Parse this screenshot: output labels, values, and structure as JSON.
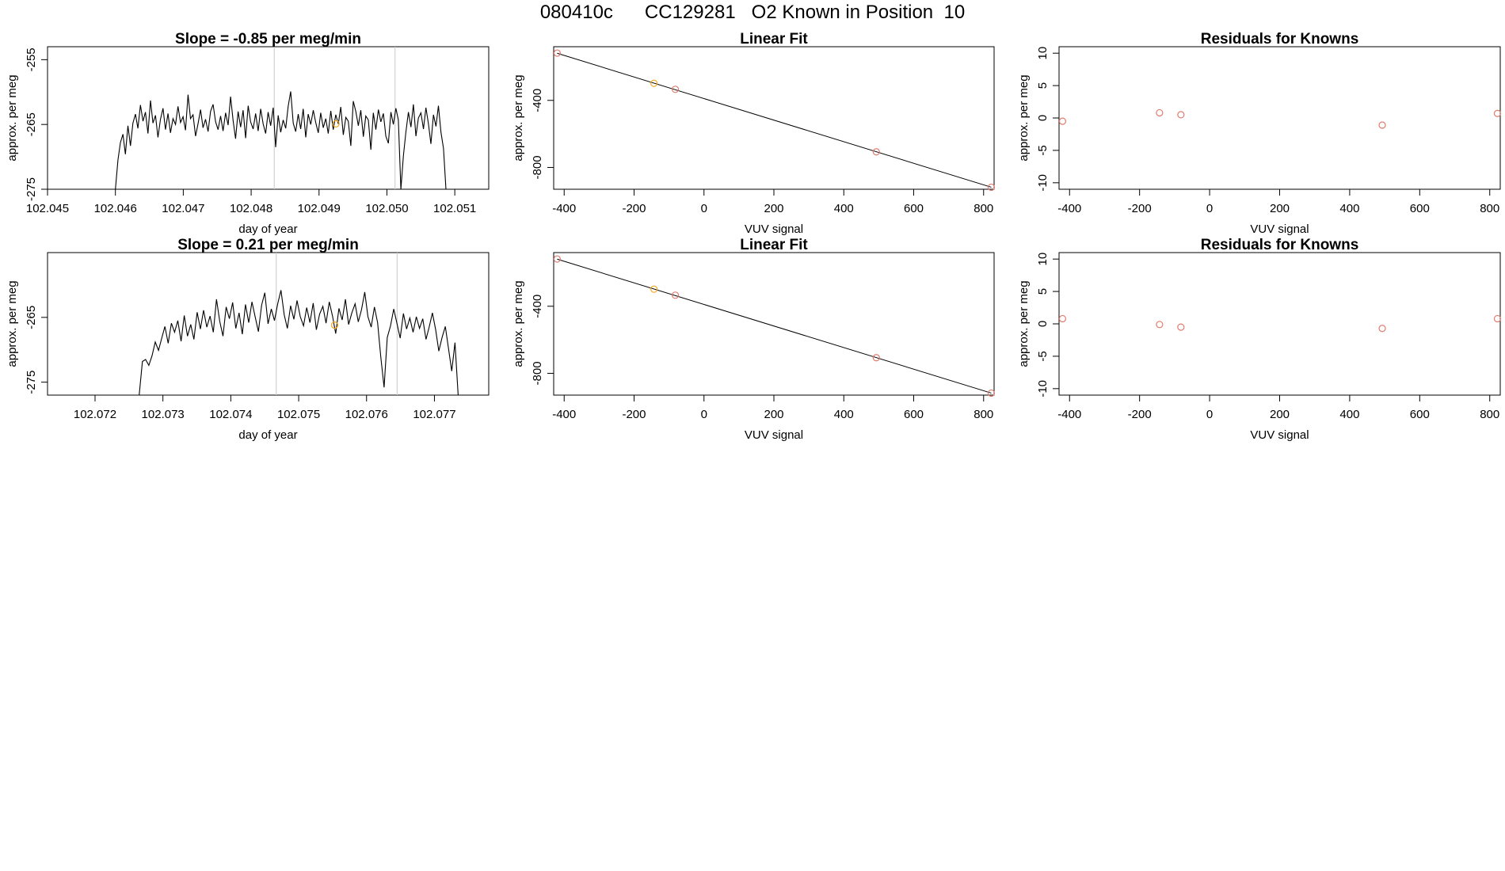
{
  "page_title": "080410c      CC129281   O2 Known in Position  10",
  "colors": {
    "known_point": "#e07b6e",
    "highlight_point": "#f5a623",
    "line": "#000000",
    "vline": "#c8c8c8"
  },
  "chart_data": [
    {
      "id": "ts1",
      "type": "line",
      "title": "Slope =  -0.85  per meg/min",
      "xlabel": "day of year",
      "ylabel": "approx. per meg",
      "xlim": [
        102.045,
        102.0515
      ],
      "ylim": [
        -275,
        -253
      ],
      "xticks": [
        "102.045",
        "102.046",
        "102.047",
        "102.048",
        "102.049",
        "102.050",
        "102.051"
      ],
      "yticks": [
        "-275",
        "-265",
        "-255"
      ],
      "vlines": [
        102.04834,
        102.05012
      ],
      "highlight_point": {
        "x": 102.04925,
        "y": -264.9
      },
      "series": [
        {
          "x_start": 102.046,
          "x_end": 102.05087,
          "n": 260,
          "mean": -265.5,
          "dip_x": 102.0502,
          "values": [
            -275,
            -270.5,
            -267.8,
            -266.5,
            -269.6,
            -265.2,
            -268.3,
            -264.8,
            -263.4,
            -265.6,
            -262.0,
            -264.5,
            -263.1,
            -266.4,
            -261.3,
            -264.8,
            -263.6,
            -267.0,
            -264.2,
            -262.5,
            -265.8,
            -263.3,
            -266.3,
            -264.1,
            -265.0,
            -262.2,
            -264.7,
            -263.8,
            -265.9,
            -260.4,
            -264.1,
            -263.5,
            -266.8,
            -264.9,
            -262.7,
            -265.5,
            -264.2,
            -266.1,
            -263.0,
            -261.9,
            -264.6,
            -265.8,
            -263.7,
            -266.0,
            -263.2,
            -265.1,
            -260.7,
            -264.4,
            -267.2,
            -263.0,
            -265.4,
            -262.8,
            -267.1,
            -262.1,
            -264.6,
            -265.7,
            -263.3,
            -266.0,
            -262.6,
            -264.9,
            -266.4,
            -263.1,
            -265.2,
            -262.4,
            -268.5,
            -263.6,
            -266.2,
            -264.3,
            -265.6,
            -262.2,
            -259.9,
            -264.8,
            -266.1,
            -263.4,
            -265.7,
            -262.6,
            -267.0,
            -263.4,
            -265.0,
            -262.8,
            -264.7,
            -266.3,
            -263.2,
            -265.5,
            -264.1,
            -266.4,
            -262.9,
            -265.8,
            -263.5,
            -264.9,
            -262.3,
            -266.6,
            -263.9,
            -264.5,
            -268.3,
            -261.4,
            -263.0,
            -265.2,
            -262.8,
            -266.9,
            -263.7,
            -264.3,
            -268.9,
            -263.2,
            -265.8,
            -262.7,
            -264.6,
            -263.3,
            -266.8,
            -267.9,
            -263.1,
            -265.0,
            -262.5,
            -264.3,
            -275,
            -269.8,
            -266.2,
            -263.1,
            -265.4,
            -261.9,
            -266.8,
            -264.0,
            -263.2,
            -265.7,
            -262.4,
            -264.9,
            -268.0,
            -263.5,
            -265.3,
            -262.1,
            -266.2,
            -268.7,
            -275
          ]
        }
      ]
    },
    {
      "id": "fit1",
      "type": "scatter",
      "title": "Linear Fit",
      "xlabel": "VUV signal",
      "ylabel": "approx. per meg",
      "xlim": [
        -430,
        830
      ],
      "ylim": [
        -930,
        -80
      ],
      "xticks": [
        -400,
        -200,
        0,
        200,
        400,
        600,
        800
      ],
      "yticks": [
        -400,
        -800
      ],
      "points": [
        {
          "x": -420,
          "y": -118,
          "hl": false
        },
        {
          "x": -143,
          "y": -298,
          "hl": true
        },
        {
          "x": -82,
          "y": -334,
          "hl": false
        },
        {
          "x": 493,
          "y": -707,
          "hl": false
        },
        {
          "x": 822,
          "y": -918,
          "hl": false
        }
      ],
      "fit_line": {
        "x": [
          -420,
          822
        ],
        "y": [
          -119,
          -918
        ]
      }
    },
    {
      "id": "res1",
      "type": "scatter",
      "title": "Residuals for Knowns",
      "xlabel": "VUV signal",
      "ylabel": "approx. per meg",
      "xlim": [
        -430,
        830
      ],
      "ylim": [
        -11,
        11
      ],
      "xticks": [
        -400,
        -200,
        0,
        200,
        400,
        600,
        800
      ],
      "yticks": [
        10,
        5,
        0,
        -5,
        -10
      ],
      "points": [
        {
          "x": -420,
          "y": -0.5
        },
        {
          "x": -143,
          "y": 0.8
        },
        {
          "x": -82,
          "y": 0.5
        },
        {
          "x": 493,
          "y": -1.1
        },
        {
          "x": 822,
          "y": 0.7
        }
      ]
    },
    {
      "id": "ts2",
      "type": "line",
      "title": "Slope =  0.21  per meg/min",
      "xlabel": "day of year",
      "ylabel": "approx. per meg",
      "xlim": [
        102.0713,
        102.0778
      ],
      "ylim": [
        -277,
        -255
      ],
      "xticks": [
        "102.072",
        "102.073",
        "102.074",
        "102.075",
        "102.076",
        "102.077"
      ],
      "yticks": [
        "-275",
        "-265"
      ],
      "vlines": [
        102.07467,
        102.07645
      ],
      "highlight_point": {
        "x": 102.07553,
        "y": -266.2
      },
      "series": [
        {
          "x_start": 102.07265,
          "x_end": 102.07735,
          "values": [
            -277,
            -271.8,
            -271.5,
            -272.4,
            -270.9,
            -268.8,
            -270.1,
            -268.2,
            -266.4,
            -269.0,
            -265.9,
            -267.3,
            -265.5,
            -268.7,
            -264.7,
            -267.9,
            -266.1,
            -268.4,
            -264.2,
            -266.8,
            -263.9,
            -266.5,
            -264.8,
            -267.3,
            -262.2,
            -265.6,
            -267.9,
            -263.4,
            -265.2,
            -262.7,
            -266.7,
            -264.3,
            -267.6,
            -263.0,
            -265.8,
            -262.6,
            -264.9,
            -267.2,
            -263.1,
            -261.2,
            -266.0,
            -263.7,
            -265.5,
            -262.9,
            -260.8,
            -264.6,
            -266.7,
            -263.2,
            -265.3,
            -262.4,
            -264.9,
            -266.3,
            -263.5,
            -265.8,
            -262.8,
            -266.9,
            -264.5,
            -263.3,
            -265.9,
            -262.6,
            -264.8,
            -267.5,
            -263.6,
            -265.4,
            -262.2,
            -266.1,
            -264.3,
            -262.9,
            -265.7,
            -263.8,
            -261.1,
            -264.9,
            -266.5,
            -263.4,
            -265.8,
            -271.2,
            -275.8,
            -268.1,
            -266.3,
            -263.7,
            -265.9,
            -268.2,
            -264.4,
            -266.8,
            -265.1,
            -267.3,
            -264.9,
            -266.7,
            -265.2,
            -268.4,
            -266.5,
            -264.3,
            -266.9,
            -270.2,
            -268.1,
            -266.4,
            -269.8,
            -273.3,
            -268.9,
            -277
          ]
        }
      ]
    },
    {
      "id": "fit2",
      "type": "scatter",
      "title": "Linear Fit",
      "xlabel": "VUV signal",
      "ylabel": "approx. per meg",
      "xlim": [
        -430,
        830
      ],
      "ylim": [
        -930,
        -80
      ],
      "xticks": [
        -400,
        -200,
        0,
        200,
        400,
        600,
        800
      ],
      "yticks": [
        -400,
        -800
      ],
      "points": [
        {
          "x": -420,
          "y": -118,
          "hl": false
        },
        {
          "x": -143,
          "y": -298,
          "hl": true
        },
        {
          "x": -82,
          "y": -334,
          "hl": false
        },
        {
          "x": 493,
          "y": -707,
          "hl": false
        },
        {
          "x": 822,
          "y": -918,
          "hl": false
        }
      ],
      "fit_line": {
        "x": [
          -420,
          822
        ],
        "y": [
          -119,
          -918
        ]
      }
    },
    {
      "id": "res2",
      "type": "scatter",
      "title": "Residuals for Knowns",
      "xlabel": "VUV signal",
      "ylabel": "approx. per meg",
      "xlim": [
        -430,
        830
      ],
      "ylim": [
        -11,
        11
      ],
      "xticks": [
        -400,
        -200,
        0,
        200,
        400,
        600,
        800
      ],
      "yticks": [
        10,
        5,
        0,
        -5,
        -10
      ],
      "points": [
        {
          "x": -420,
          "y": 0.8
        },
        {
          "x": -143,
          "y": -0.1
        },
        {
          "x": -82,
          "y": -0.5
        },
        {
          "x": 493,
          "y": -0.7
        },
        {
          "x": 822,
          "y": 0.8
        }
      ]
    }
  ]
}
